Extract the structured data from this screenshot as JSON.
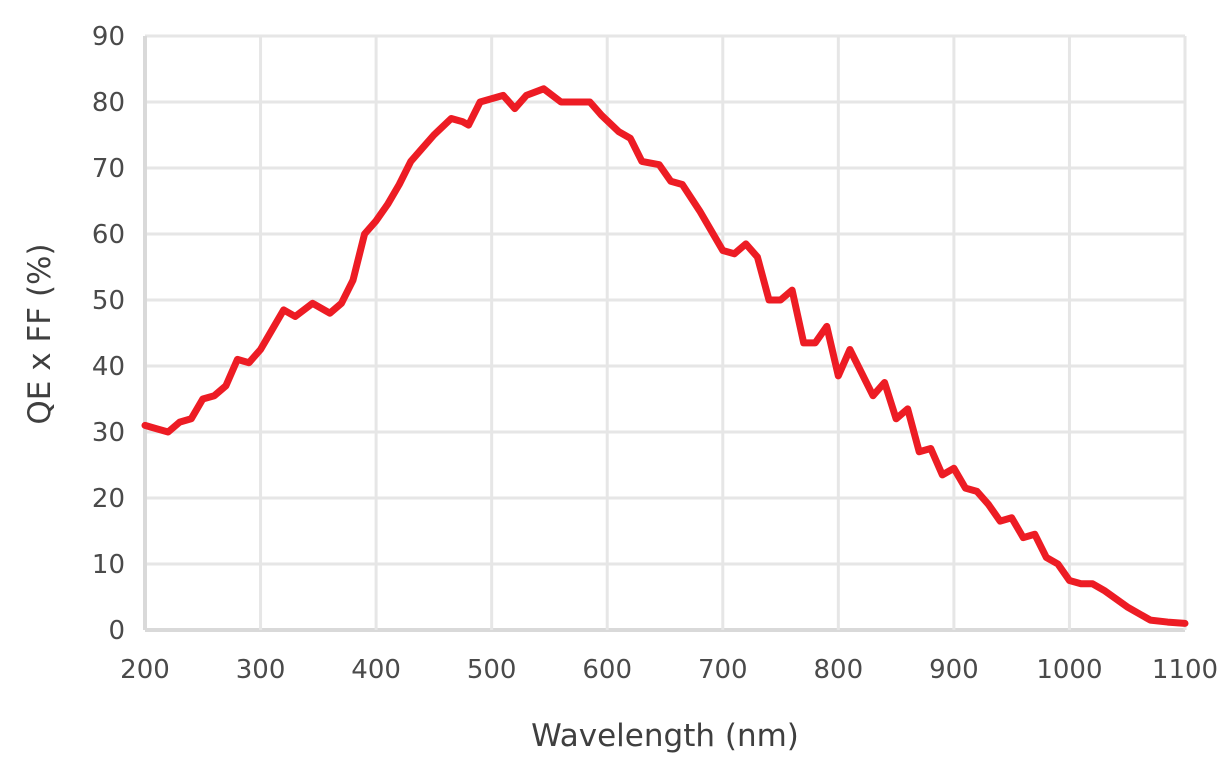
{
  "chart_data": {
    "type": "line",
    "title": "",
    "xlabel": "Wavelength (nm)",
    "ylabel": "QE x FF (%)",
    "xlim": [
      200,
      1100
    ],
    "ylim": [
      0,
      90
    ],
    "xticks": [
      "200",
      "300",
      "400",
      "500",
      "600",
      "700",
      "800",
      "900",
      "1000",
      "1100"
    ],
    "yticks": [
      "0",
      "10",
      "20",
      "30",
      "40",
      "50",
      "60",
      "70",
      "80",
      "90"
    ],
    "grid": true,
    "legend": "none",
    "series": [
      {
        "color": "#ed1c24",
        "points": [
          [
            200,
            31
          ],
          [
            210,
            30.5
          ],
          [
            220,
            30
          ],
          [
            230,
            31.5
          ],
          [
            240,
            32
          ],
          [
            250,
            35
          ],
          [
            260,
            35.5
          ],
          [
            270,
            37
          ],
          [
            280,
            41
          ],
          [
            290,
            40.5
          ],
          [
            300,
            42.5
          ],
          [
            310,
            45.5
          ],
          [
            320,
            48.5
          ],
          [
            330,
            47.5
          ],
          [
            345,
            49.5
          ],
          [
            360,
            48
          ],
          [
            370,
            49.5
          ],
          [
            380,
            53
          ],
          [
            390,
            60
          ],
          [
            400,
            62
          ],
          [
            410,
            64.5
          ],
          [
            420,
            67.5
          ],
          [
            430,
            71
          ],
          [
            440,
            73
          ],
          [
            450,
            75
          ],
          [
            465,
            77.5
          ],
          [
            475,
            77
          ],
          [
            480,
            76.5
          ],
          [
            490,
            80
          ],
          [
            510,
            81
          ],
          [
            520,
            79
          ],
          [
            530,
            81
          ],
          [
            545,
            82
          ],
          [
            560,
            80
          ],
          [
            585,
            80
          ],
          [
            595,
            78
          ],
          [
            610,
            75.5
          ],
          [
            620,
            74.5
          ],
          [
            630,
            71
          ],
          [
            645,
            70.5
          ],
          [
            655,
            68
          ],
          [
            665,
            67.5
          ],
          [
            680,
            63.5
          ],
          [
            700,
            57.5
          ],
          [
            710,
            57
          ],
          [
            720,
            58.5
          ],
          [
            730,
            56.5
          ],
          [
            740,
            50
          ],
          [
            750,
            50
          ],
          [
            760,
            51.5
          ],
          [
            770,
            43.5
          ],
          [
            780,
            43.5
          ],
          [
            790,
            46
          ],
          [
            800,
            38.5
          ],
          [
            810,
            42.5
          ],
          [
            820,
            39
          ],
          [
            830,
            35.5
          ],
          [
            840,
            37.5
          ],
          [
            850,
            32
          ],
          [
            860,
            33.5
          ],
          [
            870,
            27
          ],
          [
            880,
            27.5
          ],
          [
            890,
            23.5
          ],
          [
            900,
            24.5
          ],
          [
            910,
            21.5
          ],
          [
            920,
            21
          ],
          [
            930,
            19
          ],
          [
            940,
            16.5
          ],
          [
            950,
            17
          ],
          [
            960,
            14
          ],
          [
            970,
            14.5
          ],
          [
            980,
            11
          ],
          [
            990,
            10
          ],
          [
            1000,
            7.5
          ],
          [
            1010,
            7
          ],
          [
            1020,
            7
          ],
          [
            1030,
            6
          ],
          [
            1050,
            3.5
          ],
          [
            1070,
            1.5
          ],
          [
            1085,
            1.2
          ],
          [
            1100,
            1
          ]
        ]
      }
    ]
  }
}
